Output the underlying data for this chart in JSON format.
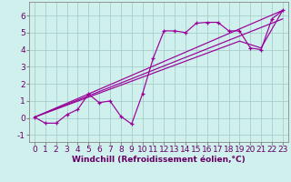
{
  "title": "",
  "xlabel": "Windchill (Refroidissement éolien,°C)",
  "ylabel": "",
  "xlim": [
    -0.5,
    23.5
  ],
  "ylim": [
    -1.4,
    6.8
  ],
  "xticks": [
    0,
    1,
    2,
    3,
    4,
    5,
    6,
    7,
    8,
    9,
    10,
    11,
    12,
    13,
    14,
    15,
    16,
    17,
    18,
    19,
    20,
    21,
    22,
    23
  ],
  "yticks": [
    -1,
    0,
    1,
    2,
    3,
    4,
    5,
    6
  ],
  "bg_color": "#cff0ec",
  "line_color": "#990099",
  "grid_color": "#a0c8c4",
  "line1_x": [
    0,
    1,
    2,
    3,
    4,
    5,
    6,
    7,
    8,
    9,
    10,
    11,
    12,
    13,
    14,
    15,
    16,
    17,
    18,
    19,
    20,
    21,
    22,
    23
  ],
  "line1_y": [
    0.05,
    -0.3,
    -0.3,
    0.2,
    0.5,
    1.4,
    0.9,
    1.0,
    0.1,
    -0.35,
    1.4,
    3.5,
    5.1,
    5.1,
    5.0,
    5.55,
    5.6,
    5.6,
    5.1,
    5.1,
    4.1,
    4.0,
    5.8,
    6.3
  ],
  "line2_x": [
    0,
    23
  ],
  "line2_y": [
    0.05,
    6.3
  ],
  "line3_x": [
    0,
    19,
    21,
    23
  ],
  "line3_y": [
    0.05,
    4.5,
    4.1,
    6.3
  ],
  "line4_x": [
    0,
    23
  ],
  "line4_y": [
    0.05,
    6.3
  ],
  "font_size": 6.5,
  "marker": "+"
}
